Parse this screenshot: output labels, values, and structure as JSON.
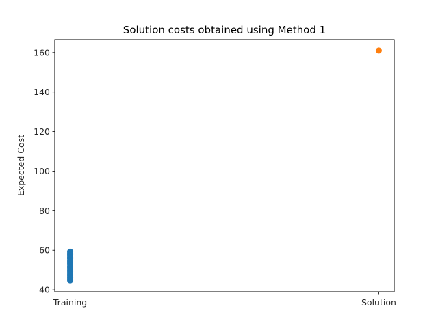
{
  "chart_data": {
    "type": "scatter",
    "title": "Solution costs obtained using Method 1",
    "xlabel": "",
    "ylabel": "Expected Cost",
    "categories": [
      "Training",
      "Solution"
    ],
    "ylim": [
      39,
      166.5
    ],
    "yticks": [
      40,
      60,
      80,
      100,
      120,
      140,
      160
    ],
    "grid": false,
    "series": [
      {
        "category": "Training",
        "color": "#1f77b4",
        "values": [
          44.8,
          45.5,
          46.2,
          47.0,
          47.7,
          48.4,
          49.1,
          49.9,
          50.6,
          51.3,
          52.0,
          52.8,
          53.5,
          54.2,
          54.9,
          55.7,
          56.4,
          57.1,
          57.8,
          58.6,
          59.3
        ]
      },
      {
        "category": "Solution",
        "color": "#ff7f0e",
        "values": [
          161.0
        ]
      }
    ]
  }
}
